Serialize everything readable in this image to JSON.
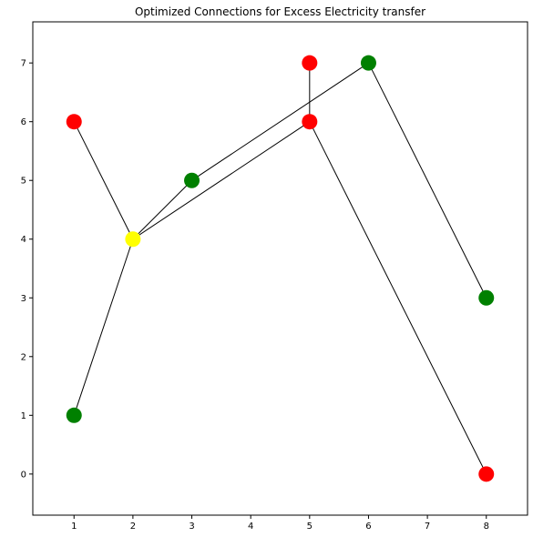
{
  "chart_data": {
    "type": "scatter",
    "title": "Optimized Connections for Excess Electricity transfer",
    "xlabel": "",
    "ylabel": "",
    "xlim": [
      0.3,
      8.7
    ],
    "ylim": [
      -0.7,
      7.7
    ],
    "x_ticks": [
      1,
      2,
      3,
      4,
      5,
      6,
      7,
      8
    ],
    "y_ticks": [
      0,
      1,
      2,
      3,
      4,
      5,
      6,
      7
    ],
    "grid": false,
    "legend": "none",
    "nodes": [
      {
        "x": 1,
        "y": 6,
        "color": "#ff0000"
      },
      {
        "x": 5,
        "y": 7,
        "color": "#ff0000"
      },
      {
        "x": 5,
        "y": 6,
        "color": "#ff0000"
      },
      {
        "x": 8,
        "y": 0,
        "color": "#ff0000"
      },
      {
        "x": 1,
        "y": 1,
        "color": "#008000"
      },
      {
        "x": 3,
        "y": 5,
        "color": "#008000"
      },
      {
        "x": 6,
        "y": 7,
        "color": "#008000"
      },
      {
        "x": 8,
        "y": 3,
        "color": "#008000"
      },
      {
        "x": 2,
        "y": 4,
        "color": "#ffff00"
      }
    ],
    "edges": [
      {
        "from": [
          1,
          6
        ],
        "to": [
          2,
          4
        ]
      },
      {
        "from": [
          1,
          1
        ],
        "to": [
          2,
          4
        ]
      },
      {
        "from": [
          2,
          4
        ],
        "to": [
          3,
          5
        ]
      },
      {
        "from": [
          3,
          5
        ],
        "to": [
          6,
          7
        ]
      },
      {
        "from": [
          2,
          4
        ],
        "to": [
          5,
          6
        ]
      },
      {
        "from": [
          5,
          6
        ],
        "to": [
          5,
          7
        ]
      },
      {
        "from": [
          5,
          6
        ],
        "to": [
          8,
          0
        ]
      },
      {
        "from": [
          6,
          7
        ],
        "to": [
          8,
          3
        ]
      }
    ]
  }
}
